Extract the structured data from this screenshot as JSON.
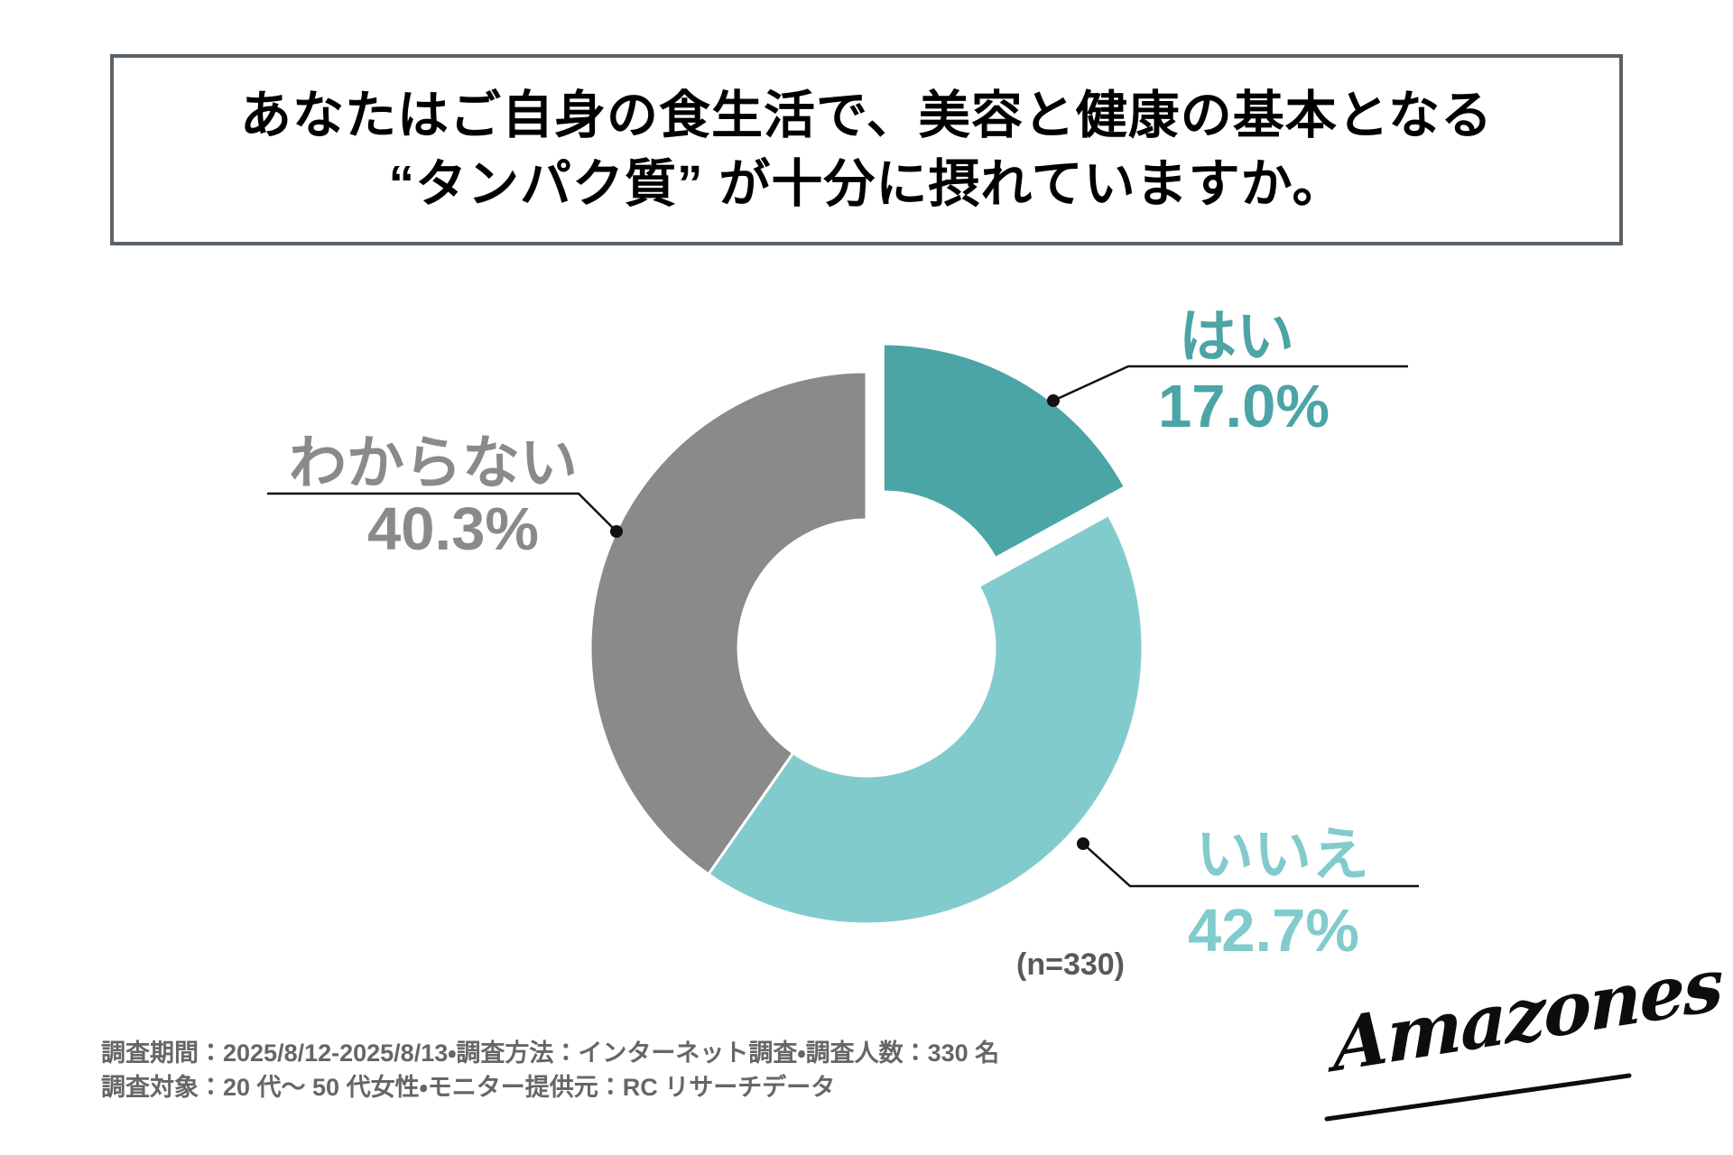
{
  "title": {
    "line1": "あなたはご自身の食生活で、美容と健康の基本となる",
    "line2": "“タンパク質” が十分に摂れていますか。"
  },
  "chart_data": {
    "type": "pie",
    "subtype": "donut",
    "title": "あなたはご自身の食生活で、美容と健康の基本となる“タンパク質”が十分に摂れていますか。",
    "sample_label": "(n=330)",
    "start_angle_deg": 0,
    "direction": "clockwise",
    "categories": [
      "はい",
      "いいえ",
      "わからない"
    ],
    "values": [
      17.0,
      42.7,
      40.3
    ],
    "series": [
      {
        "name": "はい",
        "value": 17.0,
        "display": "17.0%",
        "color": "#4BA4A5",
        "exploded": true
      },
      {
        "name": "いいえ",
        "value": 42.7,
        "display": "42.7%",
        "color": "#82CBCD",
        "exploded": false
      },
      {
        "name": "わからない",
        "value": 40.3,
        "display": "40.3%",
        "color": "#8A8A8A",
        "exploded": false
      }
    ],
    "legend_position": "callouts"
  },
  "callouts": {
    "yes": {
      "label": "はい",
      "pct": "17.0%"
    },
    "no": {
      "label": "いいえ",
      "pct": "42.7%"
    },
    "unknown": {
      "label": "わからない",
      "pct": "40.3%"
    }
  },
  "sample_size": "(n=330)",
  "footnote": {
    "line1": "調査期間：2025/8/12-2025/8/13・調査方法：インターネット調査・調査人数：330 名",
    "line2": "調査対象：20 代〜 50 代女性・モニター提供元：RC リサーチデータ"
  },
  "logo": {
    "text": "Amazones"
  },
  "colors": {
    "yes": "#4BA4A5",
    "no": "#82CBCD",
    "unknown": "#8A8A8A",
    "leader_line": "#111111",
    "title_border": "#5A6268",
    "footnote_text": "#666666",
    "sample_text": "#595959"
  }
}
